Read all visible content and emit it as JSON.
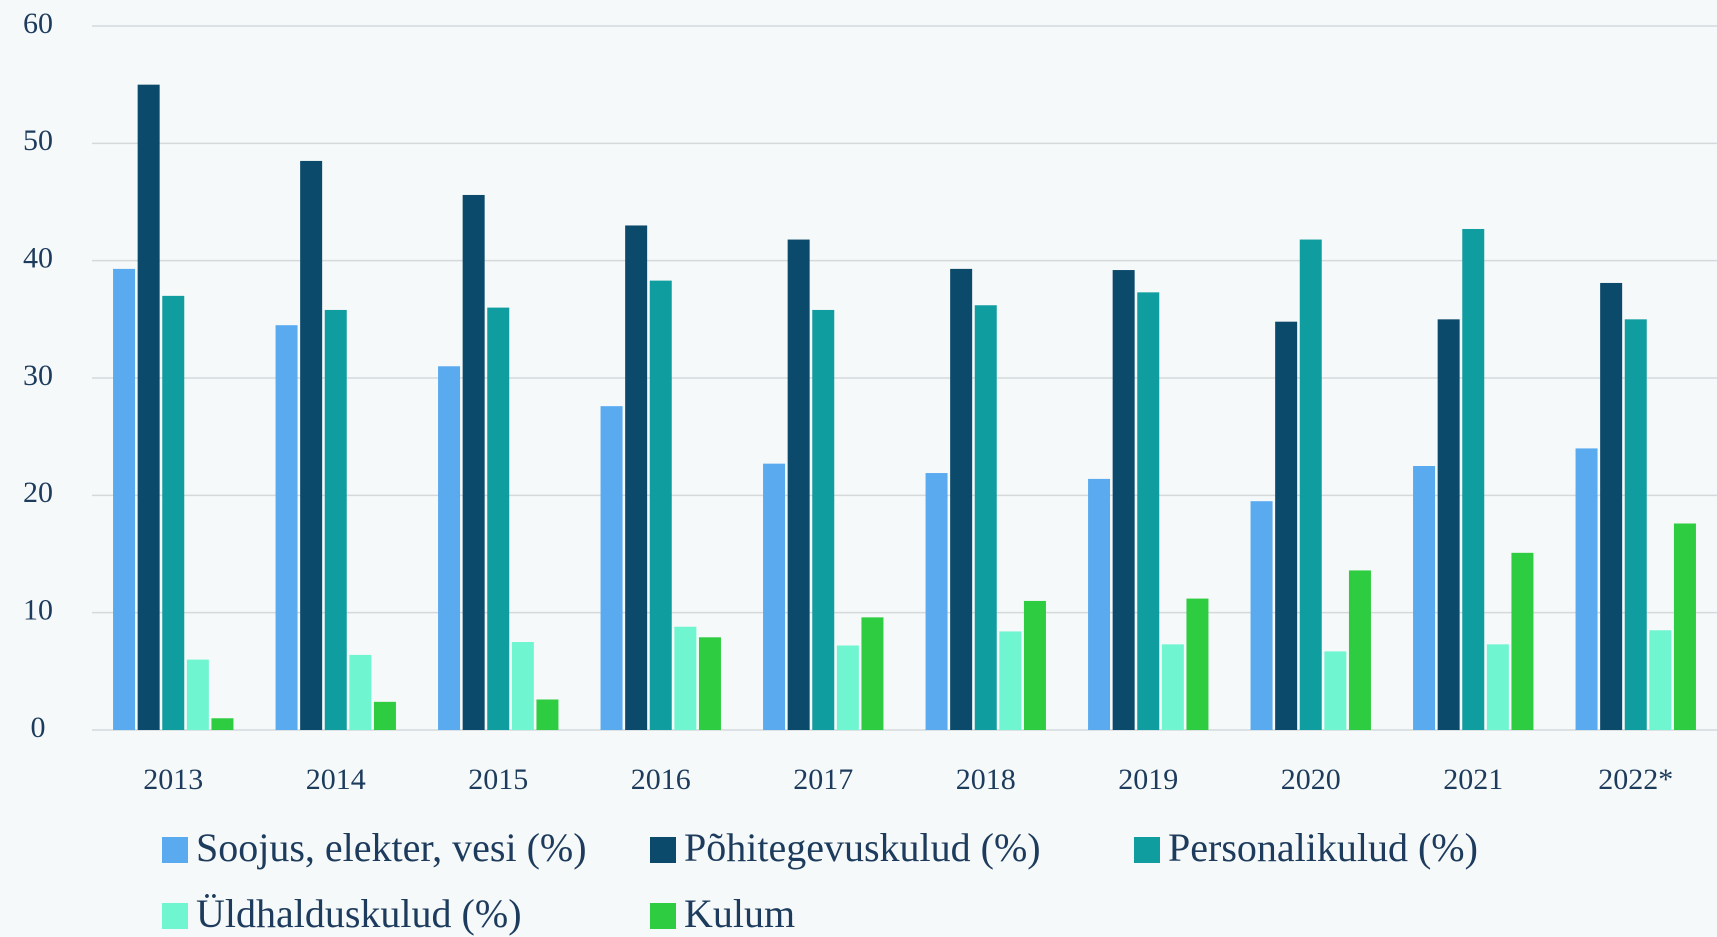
{
  "chart_data": {
    "type": "bar",
    "categories": [
      "2013",
      "2014",
      "2015",
      "2016",
      "2017",
      "2018",
      "2019",
      "2020",
      "2021",
      "2022*"
    ],
    "series": [
      {
        "name": "Soojus, elekter, vesi (%)",
        "color": "#5aaaf0",
        "values": [
          39.3,
          34.5,
          31,
          27.6,
          22.7,
          21.9,
          21.4,
          19.5,
          22.5,
          24
        ]
      },
      {
        "name": "Põhitegevuskulud (%)",
        "color": "#0b4a6b",
        "values": [
          55,
          48.5,
          45.6,
          43,
          41.8,
          39.3,
          39.2,
          34.8,
          35,
          38.1
        ]
      },
      {
        "name": "Personalikulud (%)",
        "color": "#109da0",
        "values": [
          37,
          35.8,
          36,
          38.3,
          35.8,
          36.2,
          37.3,
          41.8,
          42.7,
          35
        ]
      },
      {
        "name": "Üldhalduskulud (%)",
        "color": "#6ff5d0",
        "values": [
          6,
          6.4,
          7.5,
          8.8,
          7.2,
          8.4,
          7.3,
          6.7,
          7.3,
          8.5
        ]
      },
      {
        "name": "Kulum",
        "color": "#2ecc40",
        "values": [
          1,
          2.4,
          2.6,
          7.9,
          9.6,
          11,
          11.2,
          13.6,
          15.1,
          17.6
        ]
      }
    ],
    "ylim": [
      0,
      60
    ],
    "yticks": [
      0,
      10,
      20,
      30,
      40,
      50,
      60
    ],
    "grid": true,
    "legend": "bottom"
  }
}
